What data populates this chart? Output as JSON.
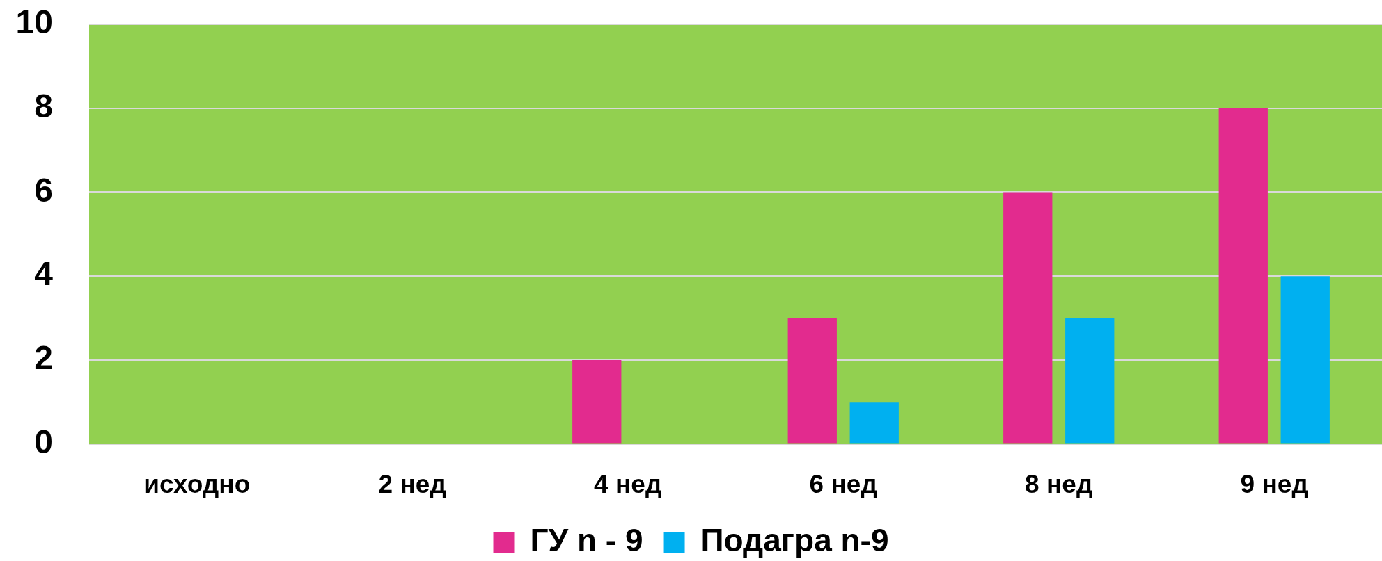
{
  "chart_data": {
    "type": "bar",
    "categories": [
      "исходно",
      "2 нед",
      "4 нед",
      "6 нед",
      "8 нед",
      "9 нед"
    ],
    "series": [
      {
        "name": "ГУ n - 9",
        "color": "#e22b8e",
        "values": [
          0,
          0,
          2,
          3,
          6,
          8
        ]
      },
      {
        "name": "Подагра n-9",
        "color": "#00b0f0",
        "values": [
          0,
          0,
          0,
          1,
          3,
          4
        ]
      }
    ],
    "ylim": [
      0,
      10
    ],
    "yticks": [
      0,
      2,
      4,
      6,
      8,
      10
    ],
    "grid": "y",
    "legend": "bottom"
  }
}
